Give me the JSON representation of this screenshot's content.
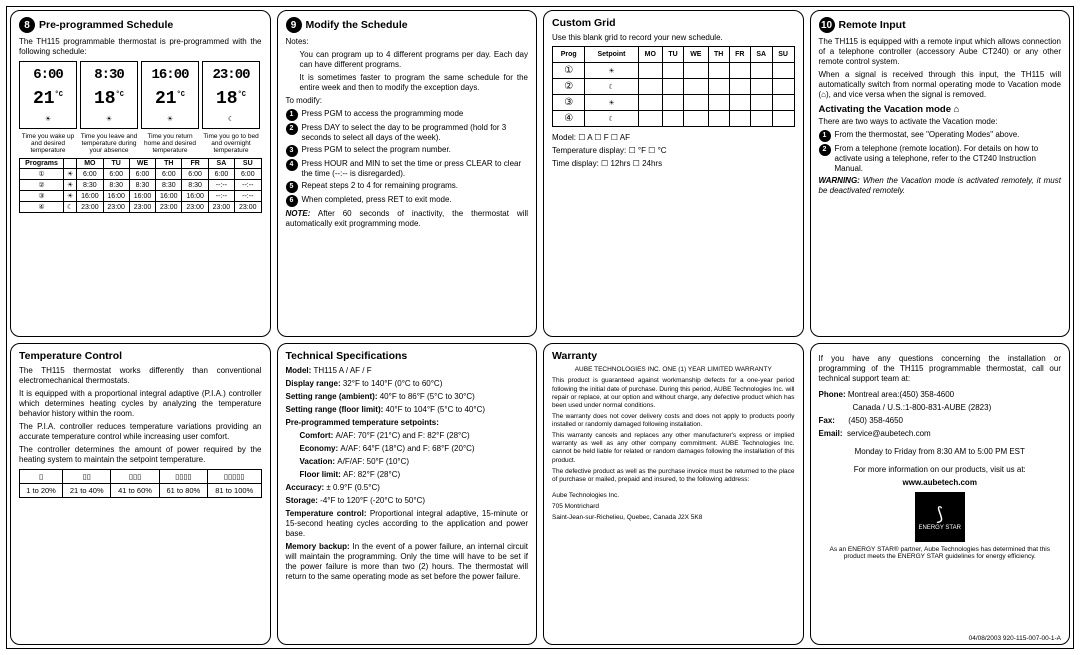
{
  "sections": {
    "s8": {
      "num": "8",
      "title": "Pre-programmed Schedule",
      "intro": "The TH115 programmable thermostat is pre-programmed with the following schedule:",
      "lcd": [
        {
          "time": "6:00",
          "temp": "21",
          "icons": "☀",
          "cap": "Time you wake up and desired temperature"
        },
        {
          "time": "8:30",
          "temp": "18",
          "icons": "☀",
          "cap": "Time you leave and temperature during your absence"
        },
        {
          "time": "16:00",
          "temp": "21",
          "icons": "☀",
          "cap": "Time you return home and desired temperature"
        },
        {
          "time": "23:00",
          "temp": "18",
          "icons": "☾",
          "cap": "Time you go to bed and overnight temperature"
        }
      ],
      "cols": [
        "Programs",
        "",
        "MO",
        "TU",
        "WE",
        "TH",
        "FR",
        "SA",
        "SU"
      ],
      "rows": [
        [
          "①",
          "☀",
          "6:00",
          "6:00",
          "6:00",
          "6:00",
          "6:00",
          "6:00",
          "6:00"
        ],
        [
          "②",
          "☀",
          "8:30",
          "8:30",
          "8:30",
          "8:30",
          "8:30",
          "--:--",
          "--:--"
        ],
        [
          "③",
          "☀",
          "16:00",
          "16:00",
          "16:00",
          "16:00",
          "16:00",
          "--:--",
          "--:--"
        ],
        [
          "④",
          "☾",
          "23:00",
          "23:00",
          "23:00",
          "23:00",
          "23:00",
          "23:00",
          "23:00"
        ]
      ]
    },
    "s9": {
      "num": "9",
      "title": "Modify the Schedule",
      "notes_label": "Notes:",
      "notes": [
        "You can program up to 4 different programs per day. Each day can have different programs.",
        "It is sometimes faster to program the same schedule for the entire week and then to modify the exception days."
      ],
      "modify_label": "To modify:",
      "steps": [
        "Press PGM to access the programming mode",
        "Press DAY to select the day to be programmed (hold for 3 seconds to select all days of the week).",
        "Press PGM to select the program number.",
        "Press HOUR and MIN to set the time or press CLEAR to clear the time (--:-- is disregarded).",
        "Repeat steps 2 to 4 for remaining programs.",
        "When completed, press RET to exit mode."
      ],
      "note_label": "NOTE:",
      "note_text": "After 60 seconds of inactivity, the thermostat will automatically exit programming mode."
    },
    "custom": {
      "title": "Custom Grid",
      "intro": "Use this blank grid to record your new schedule.",
      "cols": [
        "Prog",
        "Setpoint",
        "MO",
        "TU",
        "WE",
        "TH",
        "FR",
        "SA",
        "SU"
      ],
      "icons": [
        "☀",
        "☾",
        "☀",
        "☾"
      ],
      "model": "Model:  ☐ A   ☐ F   ☐ AF",
      "tempdisp": "Temperature display:  ☐ °F   ☐ °C",
      "timedisp": "Time display:  ☐ 12hrs   ☐ 24hrs"
    },
    "s10": {
      "num": "10",
      "title": "Remote Input",
      "p1": "The TH115 is equipped with a remote input which allows connection of a telephone controller (accessory Aube CT240) or any other remote control system.",
      "p2": "When a signal is received through this input, the TH115 will automatically switch from normal operating mode to Vacation mode (⌂), and vice versa when the signal is removed.",
      "vac_title": "Activating the Vacation mode ⌂",
      "vac_intro": "There are two ways to activate the Vacation mode:",
      "vac_steps": [
        "From the thermostat, see \"Operating Modes\" above.",
        "From a telephone (remote location). For details on how to activate using a telephone, refer to the CT240 Instruction Manual."
      ],
      "warn_label": "WARNING:",
      "warn_text": "When the Vacation mode is activated remotely, it must be deactivated remotely."
    },
    "temp": {
      "title": "Temperature Control",
      "p1": "The TH115 thermostat works differently than conventional electromechanical thermostats.",
      "p2": "It is equipped with a proportional integral adaptive (P.I.A.) controller which determines heating cycles by analyzing the temperature behavior history within the room.",
      "p3": "The P.I.A. controller reduces temperature variations providing an accurate temperature control while increasing user comfort.",
      "p4": "The controller determines the amount of power required by the heating system to maintain the setpoint temperature.",
      "headers": [
        "▯",
        "▯▯",
        "▯▯▯",
        "▯▯▯▯",
        "▯▯▯▯▯"
      ],
      "row": [
        "1 to 20%",
        "21 to 40%",
        "41 to 60%",
        "61 to 80%",
        "81 to 100%"
      ]
    },
    "tech": {
      "title": "Technical Specifications",
      "lines": [
        {
          "k": "Model:",
          "v": "TH115 A / AF / F"
        },
        {
          "k": "Display range:",
          "v": "32°F to 140°F (0°C to 60°C)"
        },
        {
          "k": "Setting range (ambient):",
          "v": "40°F to 86°F (5°C to 30°C)"
        },
        {
          "k": "Setting range (floor limit):",
          "v": "40°F to 104°F (5°C to 40°C)"
        }
      ],
      "setpoints_label": "Pre-programmed temperature setpoints:",
      "setpoints": [
        {
          "k": "Comfort:",
          "v": "A/AF: 70°F (21°C) and F: 82°F (28°C)"
        },
        {
          "k": "Economy:",
          "v": "A/AF: 64°F (18°C) and F: 68°F (20°C)"
        },
        {
          "k": "Vacation:",
          "v": "A/F/AF: 50°F (10°C)"
        },
        {
          "k": "Floor limit:",
          "v": "AF: 82°F (28°C)"
        }
      ],
      "lines2": [
        {
          "k": "Accuracy:",
          "v": "± 0.9°F (0.5°C)"
        },
        {
          "k": "Storage:",
          "v": "-4°F to 120°F (-20°C to 50°C)"
        }
      ],
      "tc_label": "Temperature control:",
      "tc_text": "Proportional integral adaptive, 15-minute or 15-second heating cycles according to the application and power base.",
      "mb_label": "Memory backup:",
      "mb_text": "In the event of a power failure, an internal circuit will maintain the programming. Only the time will have to be set if the power failure is more than two (2) hours. The thermostat will return to the same operating mode as set before the power failure."
    },
    "warranty": {
      "title": "Warranty",
      "header": "AUBE TECHNOLOGIES INC. ONE (1) YEAR LIMITED WARRANTY",
      "p1": "This product is guaranteed against workmanship defects for a one-year period following the initial date of purchase. During this period, AUBE Technologies Inc. will repair or replace, at our option and without charge, any defective product which has been used under normal conditions.",
      "p2": "The warranty does not cover delivery costs and does not apply to products poorly installed or randomly damaged following installation.",
      "p3": "This warranty cancels and replaces any other manufacturer's express or implied warranty as well as any other company commitment. AUBE Technologies Inc. cannot be held liable for related or random damages following the installation of this product.",
      "p4": "The defective product as well as the purchase invoice must be returned to the place of purchase or mailed, prepaid and insured, to the following address:",
      "addr1": "Aube Technologies Inc.",
      "addr2": "705 Montrichard",
      "addr3": "Saint-Jean-sur-Richelieu, Quebec, Canada  J2X 5K8"
    },
    "contact": {
      "p1": "If you have any questions concerning the installation or programming of the TH115 programmable thermostat, call our technical support team at:",
      "phone_label": "Phone:",
      "phone1": "Montreal area:(450) 358-4600",
      "phone2": "Canada / U.S.:1-800-831-AUBE (2823)",
      "fax_label": "Fax:",
      "fax": "(450) 358-4650",
      "email_label": "Email:",
      "email": "service@aubetech.com",
      "hours": "Monday to Friday from 8:30 AM to 5:00 PM EST",
      "more": "For more information on our products, visit us at:",
      "url": "www.aubetech.com",
      "estar_top": "★",
      "estar_label": "ENERGY STAR",
      "estar_text": "As an ENERGY STAR® partner, Aube Technologies has determined that this product meets the ENERGY STAR guidelines for energy efficiency.",
      "footer": "04/08/2003   920-115-007-00-1-A"
    }
  }
}
